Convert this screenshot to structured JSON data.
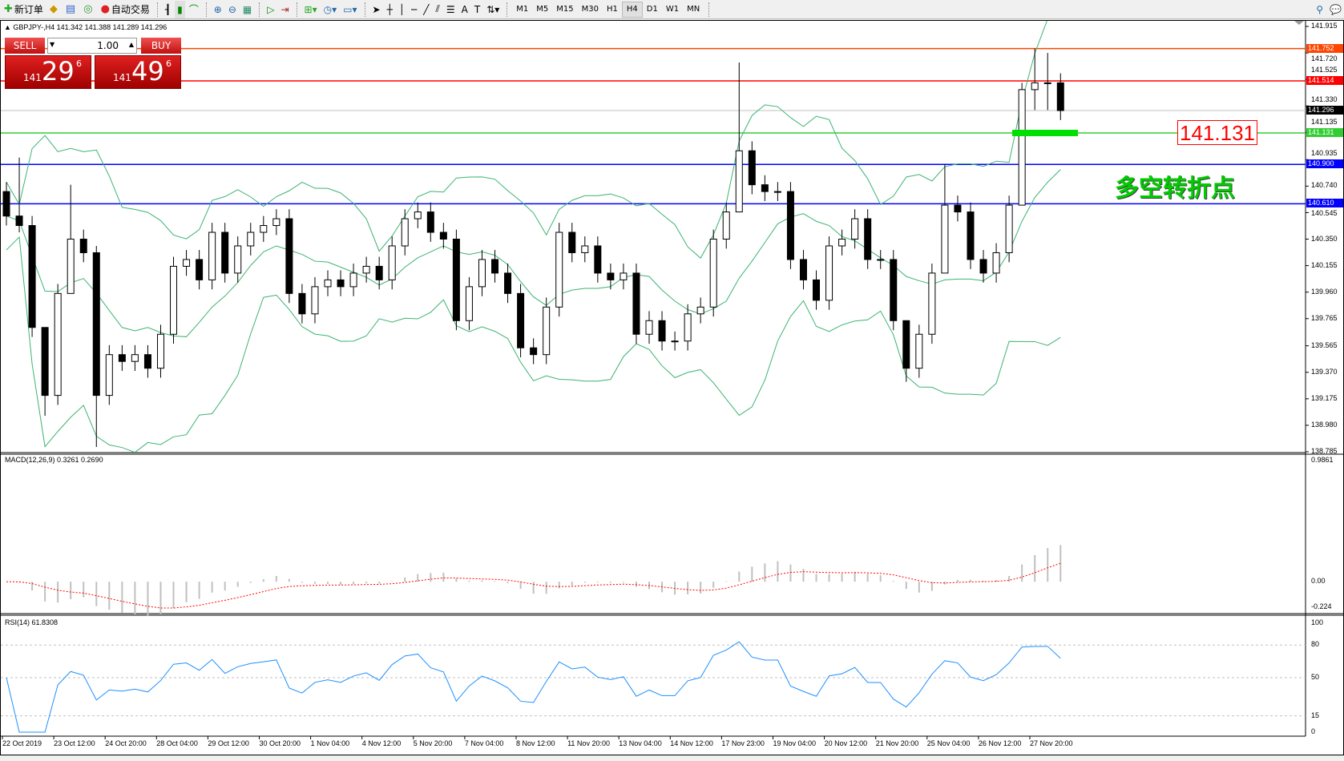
{
  "toolbar": {
    "items": [
      {
        "icon": "new-order-icon",
        "label": "新订单"
      },
      {
        "icon": "market-watch-icon",
        "label": ""
      },
      {
        "icon": "data-window-icon",
        "label": ""
      },
      {
        "icon": "signals-icon",
        "label": ""
      },
      {
        "icon": "auto-trading-icon",
        "label": "自动交易"
      }
    ],
    "timeframes": [
      "M1",
      "M5",
      "M15",
      "M30",
      "H1",
      "H4",
      "D1",
      "W1",
      "MN"
    ],
    "active_timeframe": "H4"
  },
  "chart": {
    "header": "GBPJPY-,H4  141.342 141.388 141.289 141.296",
    "trade_panel": {
      "sell_label": "SELL",
      "buy_label": "BUY",
      "volume": "1.00",
      "sell_prefix": "141",
      "sell_big": "29",
      "sell_sup": "6",
      "buy_prefix": "141",
      "buy_big": "49",
      "buy_sup": "6"
    },
    "price_ticks": [
      "141.915",
      "141.720",
      "141.525",
      "141.330",
      "141.135",
      "140.935",
      "140.740",
      "140.545",
      "140.350",
      "140.155",
      "139.960",
      "139.765",
      "139.565",
      "139.370",
      "139.175",
      "138.980",
      "138.785"
    ],
    "price_range": [
      138.785,
      141.915
    ],
    "hlines": [
      {
        "price": 141.752,
        "label": "141.752",
        "color": "#ff4500"
      },
      {
        "price": 141.514,
        "label": "141.514",
        "color": "#ff0000"
      },
      {
        "price": 141.296,
        "label": "141.296",
        "color": "#000000",
        "line": "#c0c0c0"
      },
      {
        "price": 141.131,
        "label": "141.131",
        "color": "#32cd32"
      },
      {
        "price": 140.9,
        "label": "140.900",
        "color": "#0000ff"
      },
      {
        "price": 140.61,
        "label": "140.610",
        "color": "#0000ff"
      }
    ],
    "price_label_box": "141.131",
    "annotation": "多空转折点",
    "annotation_color": "#00cc00",
    "first_open": 140.7,
    "closes": [
      140.52,
      140.45,
      139.7,
      139.2,
      139.95,
      140.35,
      140.25,
      139.2,
      139.5,
      139.45,
      139.5,
      139.4,
      139.65,
      140.15,
      140.2,
      140.05,
      140.4,
      140.1,
      140.3,
      140.4,
      140.45,
      140.5,
      139.95,
      139.8,
      140.0,
      140.05,
      140.0,
      140.1,
      140.15,
      140.05,
      140.3,
      140.5,
      140.55,
      140.4,
      140.35,
      139.75,
      140.0,
      140.2,
      140.1,
      139.95,
      139.55,
      139.5,
      139.85,
      140.4,
      140.25,
      140.3,
      140.1,
      140.05,
      140.1,
      139.65,
      139.75,
      139.6,
      139.6,
      139.8,
      139.85,
      140.35,
      140.55,
      141.0,
      140.75,
      140.7,
      140.7,
      140.2,
      140.05,
      139.9,
      140.3,
      140.35,
      140.5,
      140.2,
      140.2,
      139.75,
      139.4,
      139.65,
      140.1,
      140.6,
      140.55,
      140.2,
      140.1,
      140.25,
      140.6,
      141.45,
      141.5,
      141.5,
      141.296
    ],
    "wick_overrides": {
      "1": [
        140.95,
        140.4
      ],
      "3": [
        139.25,
        139.05
      ],
      "5": [
        140.75,
        140.3
      ],
      "7": [
        140.3,
        138.82
      ],
      "57": [
        141.65,
        140.6
      ],
      "70": [
        139.6,
        139.3
      ],
      "73": [
        140.9,
        140.4
      ],
      "79": [
        141.5,
        140.6
      ],
      "80": [
        141.752,
        141.3
      ],
      "81": [
        141.72,
        141.3
      ]
    }
  },
  "macd": {
    "label": "MACD(12,26,9) 0.3261 0.2690",
    "ticks": [
      "0.9861",
      "0.00",
      "-0.224"
    ],
    "range": [
      -0.224,
      0.9861
    ]
  },
  "rsi": {
    "label": "RSI(14) 61.8308",
    "ticks": [
      "100",
      "80",
      "50",
      "15",
      "0"
    ],
    "levels": [
      80,
      50,
      15
    ]
  },
  "time_labels": [
    "22 Oct 2019",
    "23 Oct 12:00",
    "24 Oct 20:00",
    "28 Oct 04:00",
    "29 Oct 12:00",
    "30 Oct 20:00",
    "1 Nov 04:00",
    "4 Nov 12:00",
    "5 Nov 20:00",
    "7 Nov 04:00",
    "8 Nov 12:00",
    "11 Nov 20:00",
    "13 Nov 04:00",
    "14 Nov 12:00",
    "17 Nov 23:00",
    "19 Nov 04:00",
    "20 Nov 12:00",
    "21 Nov 20:00",
    "25 Nov 04:00",
    "26 Nov 12:00",
    "27 Nov 20:00"
  ]
}
